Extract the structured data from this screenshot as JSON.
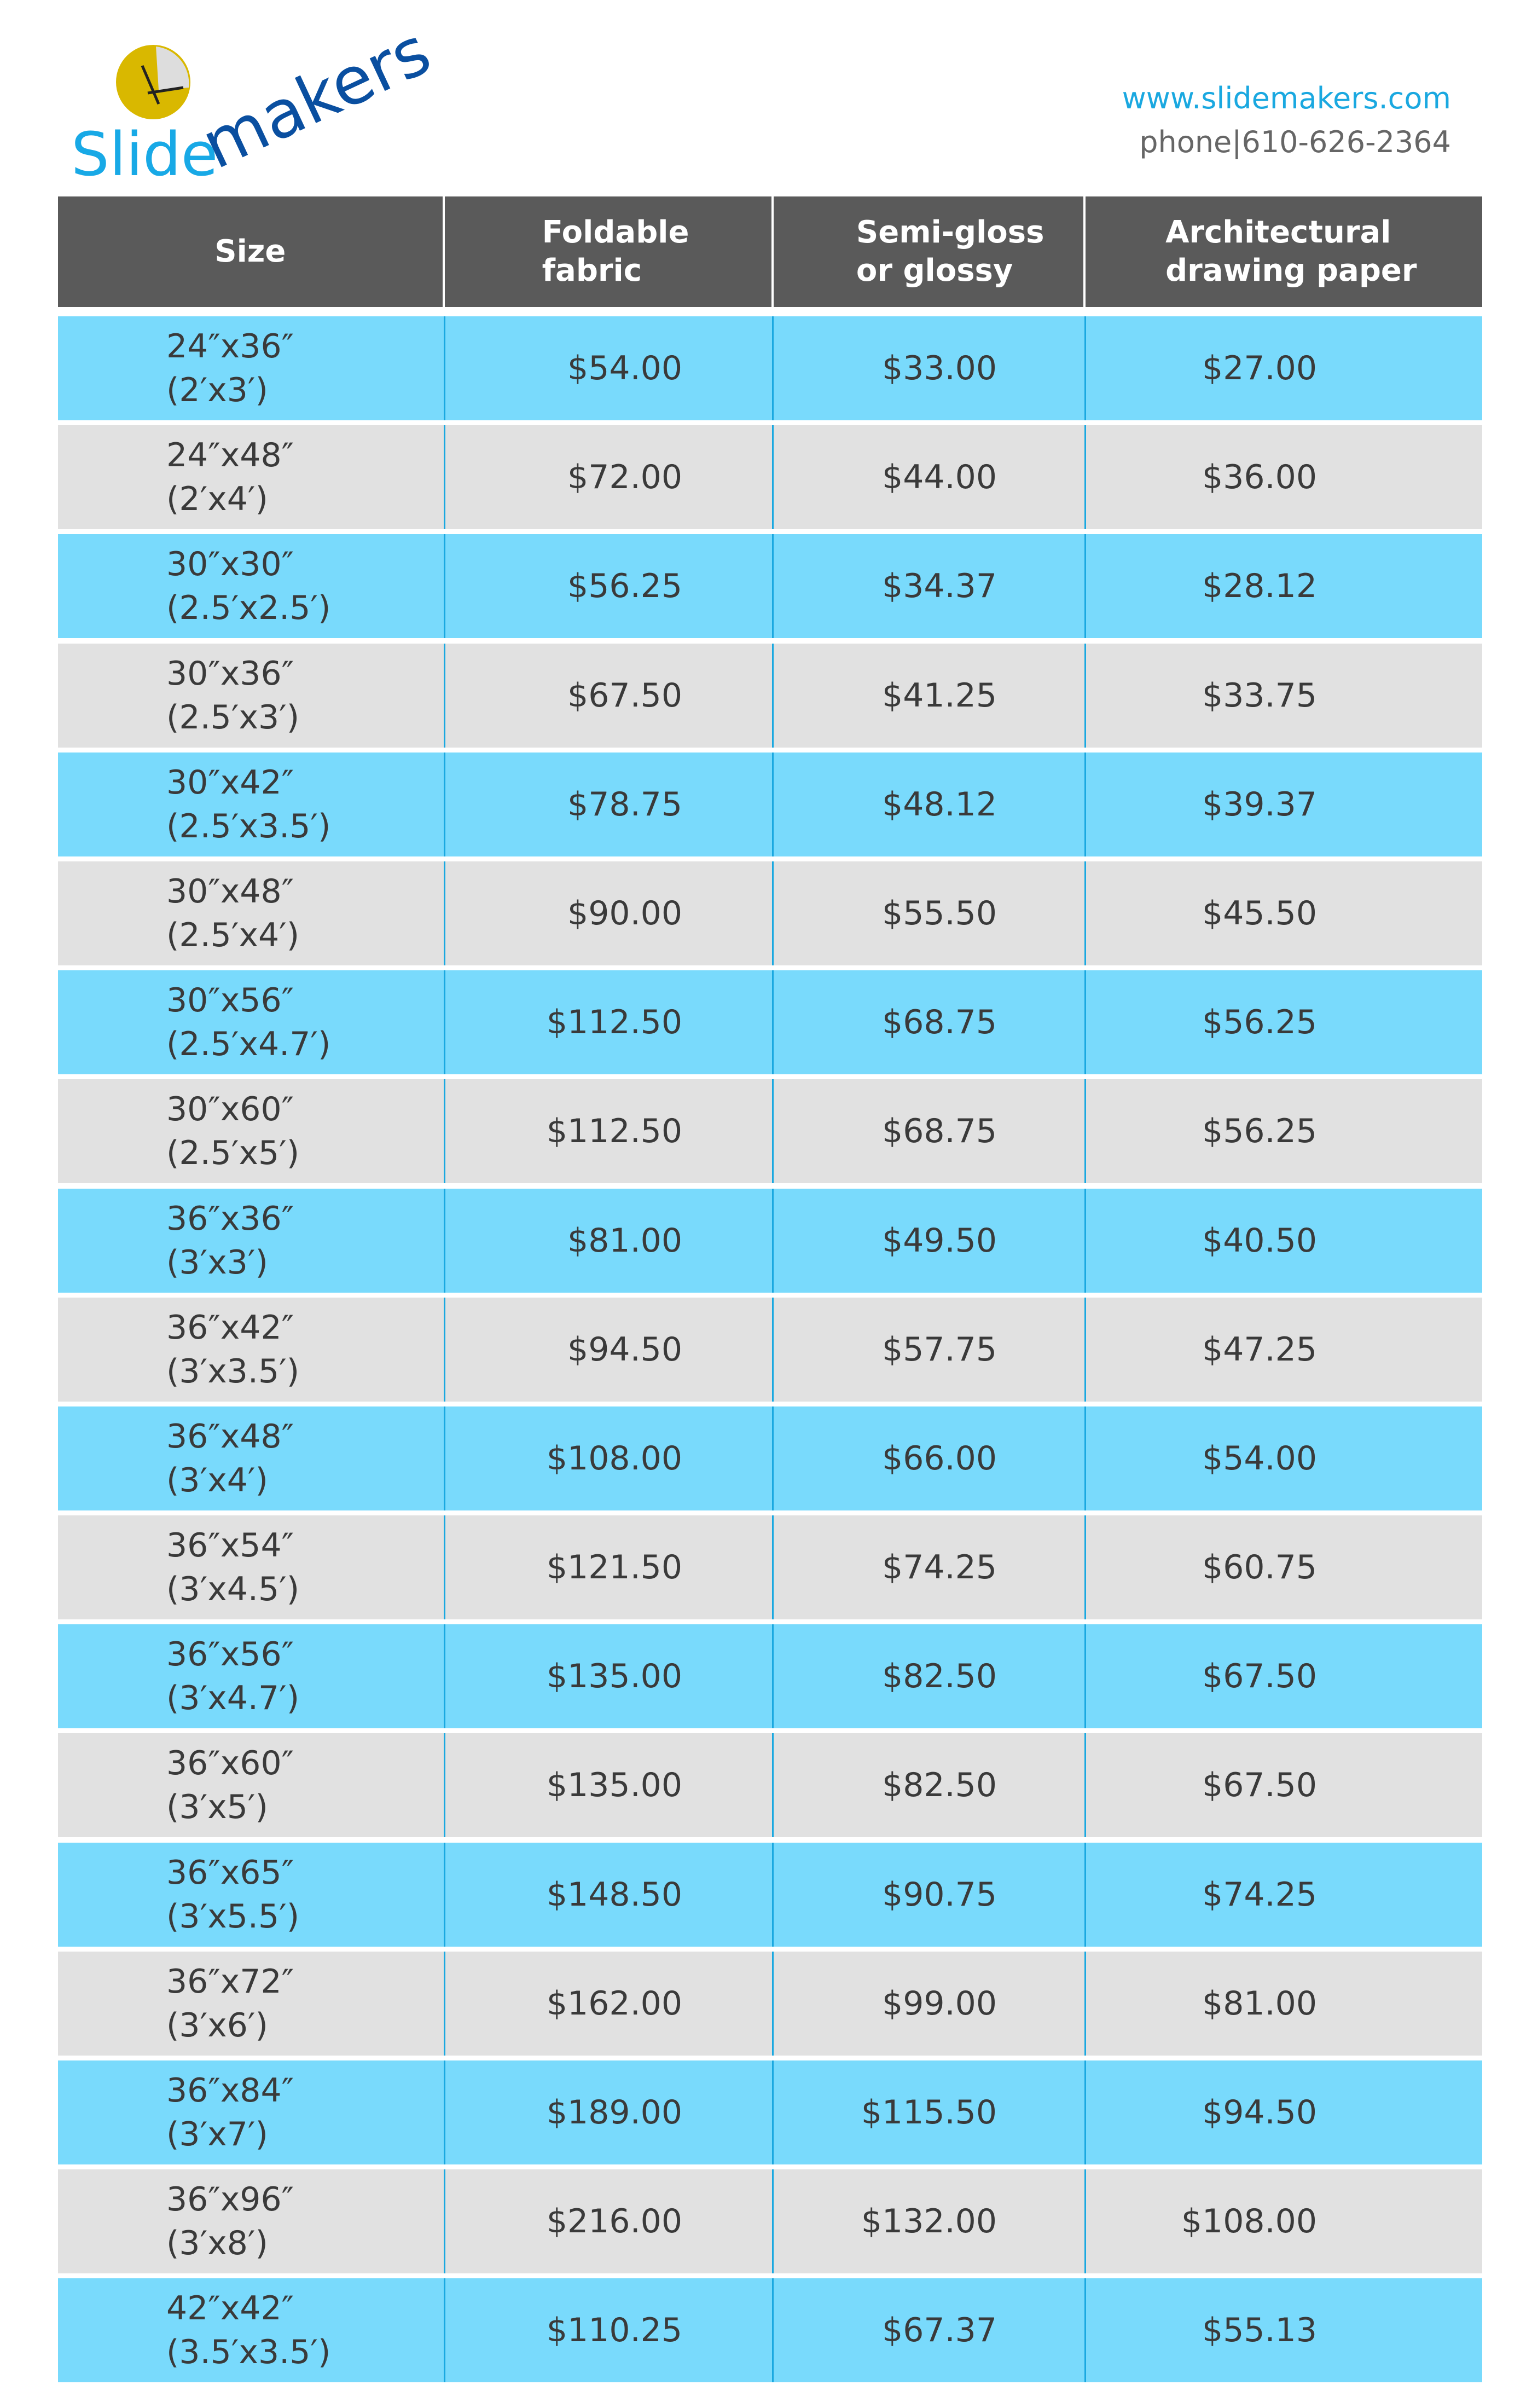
{
  "brand": {
    "logo_text_light": "Slide",
    "logo_text_dark": "makers",
    "url": "www.slidemakers.com",
    "phone": "phone|610-626-2364"
  },
  "colors": {
    "header_bg": "#5a5a5a",
    "row_blue": "#79dafc",
    "row_gray": "#e1e1e1",
    "accent": "#1aa8e0",
    "logo_dark": "#0a4fa0"
  },
  "table": {
    "headers": [
      "Size",
      "Foldable\nfabric",
      "Semi-gloss\nor glossy",
      "Architectural\ndrawing paper"
    ],
    "rows": [
      {
        "size": "24″x36″",
        "feet": "(2′x3′)",
        "fabric": "$54.00",
        "gloss": "$33.00",
        "paper": "$27.00"
      },
      {
        "size": "24″x48″",
        "feet": "(2′x4′)",
        "fabric": "$72.00",
        "gloss": "$44.00",
        "paper": "$36.00"
      },
      {
        "size": "30″x30″",
        "feet": "(2.5′x2.5′)",
        "fabric": "$56.25",
        "gloss": "$34.37",
        "paper": "$28.12"
      },
      {
        "size": "30″x36″",
        "feet": "(2.5′x3′)",
        "fabric": "$67.50",
        "gloss": "$41.25",
        "paper": "$33.75"
      },
      {
        "size": "30″x42″",
        "feet": "(2.5′x3.5′)",
        "fabric": "$78.75",
        "gloss": "$48.12",
        "paper": "$39.37"
      },
      {
        "size": "30″x48″",
        "feet": "(2.5′x4′)",
        "fabric": "$90.00",
        "gloss": "$55.50",
        "paper": "$45.50"
      },
      {
        "size": "30″x56″",
        "feet": "(2.5′x4.7′)",
        "fabric": "$112.50",
        "gloss": "$68.75",
        "paper": "$56.25"
      },
      {
        "size": "30″x60″",
        "feet": "(2.5′x5′)",
        "fabric": "$112.50",
        "gloss": "$68.75",
        "paper": "$56.25"
      },
      {
        "size": "36″x36″",
        "feet": "(3′x3′)",
        "fabric": "$81.00",
        "gloss": "$49.50",
        "paper": "$40.50"
      },
      {
        "size": "36″x42″",
        "feet": "(3′x3.5′)",
        "fabric": "$94.50",
        "gloss": "$57.75",
        "paper": "$47.25"
      },
      {
        "size": "36″x48″",
        "feet": "(3′x4′)",
        "fabric": "$108.00",
        "gloss": "$66.00",
        "paper": "$54.00"
      },
      {
        "size": "36″x54″",
        "feet": "(3′x4.5′)",
        "fabric": "$121.50",
        "gloss": "$74.25",
        "paper": "$60.75"
      },
      {
        "size": "36″x56″",
        "feet": "(3′x4.7′)",
        "fabric": "$135.00",
        "gloss": "$82.50",
        "paper": "$67.50"
      },
      {
        "size": "36″x60″",
        "feet": "(3′x5′)",
        "fabric": "$135.00",
        "gloss": "$82.50",
        "paper": "$67.50"
      },
      {
        "size": "36″x65″",
        "feet": "(3′x5.5′)",
        "fabric": "$148.50",
        "gloss": "$90.75",
        "paper": "$74.25"
      },
      {
        "size": "36″x72″",
        "feet": "(3′x6′)",
        "fabric": "$162.00",
        "gloss": "$99.00",
        "paper": "$81.00"
      },
      {
        "size": "36″x84″",
        "feet": "(3′x7′)",
        "fabric": "$189.00",
        "gloss": "$115.50",
        "paper": "$94.50"
      },
      {
        "size": "36″x96″",
        "feet": "(3′x8′)",
        "fabric": "$216.00",
        "gloss": "$132.00",
        "paper": "$108.00"
      },
      {
        "size": "42″x42″",
        "feet": "(3.5′x3.5′)",
        "fabric": "$110.25",
        "gloss": "$67.37",
        "paper": "$55.13"
      }
    ]
  }
}
